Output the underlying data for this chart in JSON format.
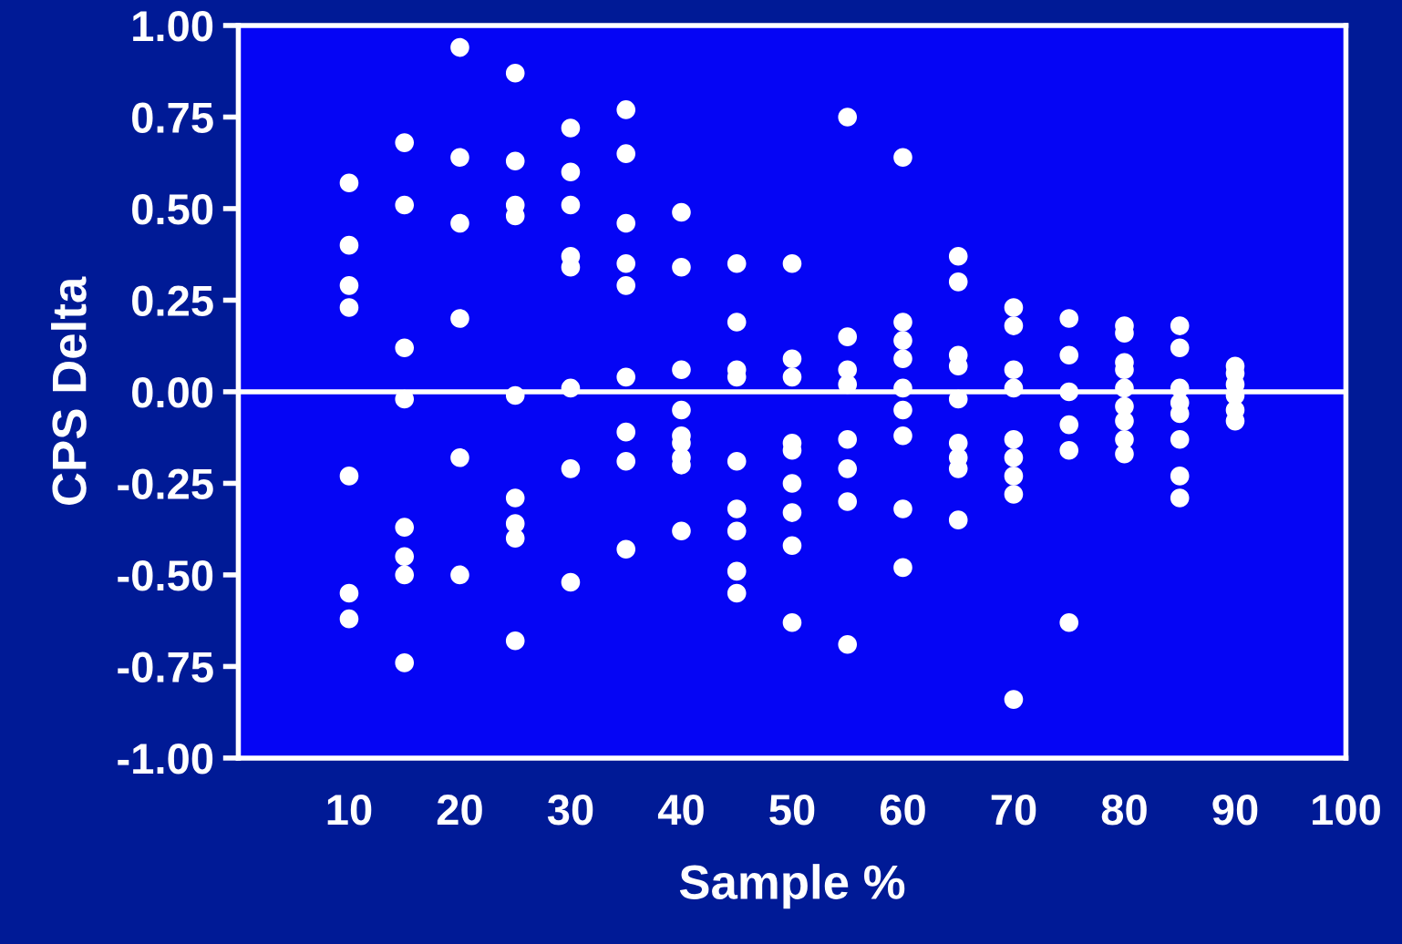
{
  "chart_data": {
    "type": "scatter",
    "xlabel": "Sample %",
    "ylabel": "CPS Delta",
    "x": [
      10,
      10,
      10,
      10,
      10,
      10,
      10,
      15,
      15,
      15,
      15,
      15,
      15,
      15,
      15,
      20,
      20,
      20,
      20,
      20,
      20,
      25,
      25,
      25,
      25,
      25,
      25,
      25,
      25,
      25,
      30,
      30,
      30,
      30,
      30,
      30,
      30,
      30,
      35,
      35,
      35,
      35,
      35,
      35,
      35,
      35,
      35,
      40,
      40,
      40,
      40,
      40,
      40,
      40,
      40,
      40,
      45,
      45,
      45,
      45,
      45,
      45,
      45,
      45,
      45,
      50,
      50,
      50,
      50,
      50,
      50,
      50,
      50,
      50,
      55,
      55,
      55,
      55,
      55,
      55,
      55,
      55,
      60,
      60,
      60,
      60,
      60,
      60,
      60,
      60,
      60,
      65,
      65,
      65,
      65,
      65,
      65,
      65,
      65,
      65,
      70,
      70,
      70,
      70,
      70,
      70,
      70,
      70,
      70,
      75,
      75,
      75,
      75,
      75,
      75,
      80,
      80,
      80,
      80,
      80,
      80,
      80,
      80,
      80,
      85,
      85,
      85,
      85,
      85,
      85,
      85,
      85,
      90,
      90,
      90,
      90,
      90,
      90
    ],
    "series": [
      {
        "color": "#ffffff",
        "values": [
          0.57,
          0.4,
          0.29,
          0.23,
          -0.23,
          -0.55,
          -0.62,
          0.68,
          0.51,
          0.12,
          -0.02,
          -0.37,
          -0.45,
          -0.5,
          -0.74,
          0.94,
          0.64,
          0.46,
          0.2,
          -0.18,
          -0.5,
          0.87,
          0.63,
          0.51,
          0.48,
          -0.01,
          -0.29,
          -0.36,
          -0.4,
          -0.68,
          0.72,
          0.6,
          0.51,
          0.37,
          0.34,
          0.01,
          -0.21,
          -0.52,
          0.77,
          0.65,
          0.46,
          0.35,
          0.29,
          0.04,
          -0.11,
          -0.19,
          -0.43,
          0.49,
          0.34,
          0.06,
          -0.05,
          -0.12,
          -0.14,
          -0.18,
          -0.2,
          -0.38,
          0.35,
          0.19,
          0.06,
          0.04,
          -0.19,
          -0.32,
          -0.38,
          -0.49,
          -0.55,
          0.35,
          0.09,
          0.04,
          -0.14,
          -0.16,
          -0.25,
          -0.33,
          -0.42,
          -0.63,
          0.75,
          0.15,
          0.06,
          0.02,
          -0.13,
          -0.21,
          -0.3,
          -0.69,
          0.64,
          0.19,
          0.14,
          0.09,
          0.01,
          -0.05,
          -0.12,
          -0.32,
          -0.48,
          0.37,
          0.3,
          0.1,
          0.07,
          -0.02,
          -0.14,
          -0.18,
          -0.21,
          -0.35,
          0.23,
          0.18,
          0.06,
          0.01,
          -0.13,
          -0.18,
          -0.23,
          -0.28,
          -0.84,
          0.2,
          0.1,
          0.0,
          -0.09,
          -0.16,
          -0.63,
          0.18,
          0.16,
          0.08,
          0.06,
          0.01,
          -0.04,
          -0.08,
          -0.13,
          -0.17,
          0.18,
          0.12,
          0.01,
          -0.03,
          -0.06,
          -0.13,
          -0.23,
          -0.29,
          0.07,
          0.05,
          0.02,
          -0.01,
          -0.05,
          -0.08
        ]
      }
    ],
    "marker": "circle",
    "grid": false,
    "legend": false,
    "xlim": [
      0,
      100
    ],
    "xticks": [
      10,
      20,
      30,
      40,
      50,
      60,
      70,
      80,
      90,
      100
    ],
    "ylim": [
      -1,
      1
    ],
    "yticks": [
      {
        "value": -1,
        "label": "-1.00"
      },
      {
        "value": -0.75,
        "label": "-0.75"
      },
      {
        "value": -0.5,
        "label": "-0.50"
      },
      {
        "value": -0.25,
        "label": "-0.25"
      },
      {
        "value": 0,
        "label": "0.00"
      },
      {
        "value": 0.25,
        "label": "0.25"
      },
      {
        "value": 0.5,
        "label": "0.50"
      },
      {
        "value": 0.75,
        "label": "0.75"
      },
      {
        "value": 1,
        "label": "1.00"
      }
    ],
    "ref_lines": [
      {
        "axis": "y",
        "value": 0,
        "color": "#ffffff",
        "line_style": "solid"
      }
    ]
  }
}
